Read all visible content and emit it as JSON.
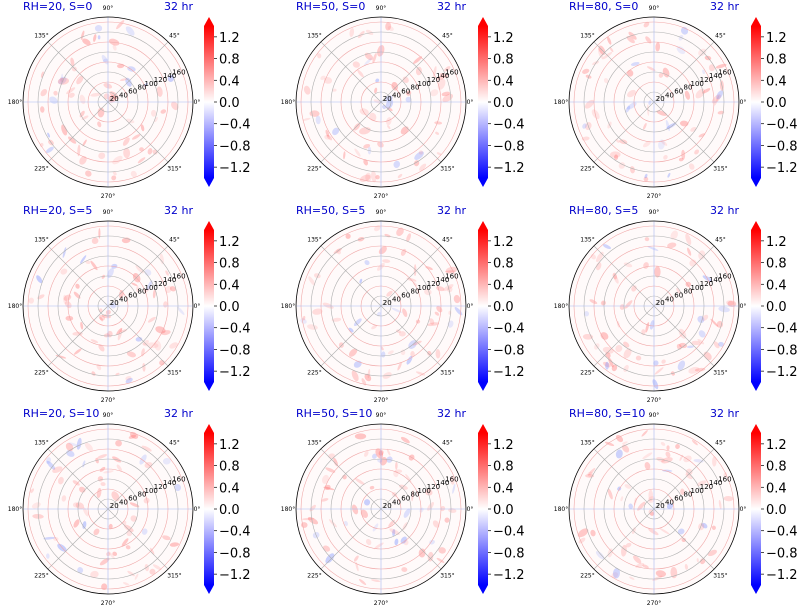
{
  "chart_data": [
    {
      "type": "heatmap",
      "title": "RH=20, S=0",
      "time_label": "32 hr",
      "rh": 20,
      "s": 0
    },
    {
      "type": "heatmap",
      "title": "RH=50, S=0",
      "time_label": "32 hr",
      "rh": 50,
      "s": 0
    },
    {
      "type": "heatmap",
      "title": "RH=80, S=0",
      "time_label": "32 hr",
      "rh": 80,
      "s": 0
    },
    {
      "type": "heatmap",
      "title": "RH=20, S=5",
      "time_label": "32 hr",
      "rh": 20,
      "s": 5
    },
    {
      "type": "heatmap",
      "title": "RH=50, S=5",
      "time_label": "32 hr",
      "rh": 50,
      "s": 5
    },
    {
      "type": "heatmap",
      "title": "RH=80, S=5",
      "time_label": "32 hr",
      "rh": 80,
      "s": 5
    },
    {
      "type": "heatmap",
      "title": "RH=20, S=10",
      "time_label": "32 hr",
      "rh": 20,
      "s": 10
    },
    {
      "type": "heatmap",
      "title": "RH=50, S=10",
      "time_label": "32 hr",
      "rh": 50,
      "s": 10
    },
    {
      "type": "heatmap",
      "title": "RH=80, S=10",
      "time_label": "32 hr",
      "rh": 80,
      "s": 10
    }
  ],
  "polar_axes": {
    "angle_ticks": [
      "0°",
      "45°",
      "90°",
      "135°",
      "180°",
      "225°",
      "270°",
      "315°"
    ],
    "radial_ticks": [
      20,
      40,
      60,
      80,
      100,
      120,
      140,
      160
    ],
    "rmax": 170,
    "radial_label_angle_deg": 22.5
  },
  "colorbar": {
    "cmap": "bwr",
    "vmin": -1.4,
    "vmax": 1.4,
    "extend": "both",
    "ticks": [
      "1.2",
      "0.8",
      "0.4",
      "0.0",
      "−0.4",
      "−0.8",
      "−1.2"
    ],
    "tick_values": [
      1.2,
      0.8,
      0.4,
      0.0,
      -0.4,
      -0.8,
      -1.2
    ],
    "color_low": "#0000ff",
    "color_mid": "#ffffff",
    "color_high": "#ff0000"
  },
  "colors": {
    "title": "#0000cc",
    "grid_pink": "#f0a8a8",
    "grid_blue": "#a8b8f0",
    "grid_gray": "#b0b0b0"
  }
}
